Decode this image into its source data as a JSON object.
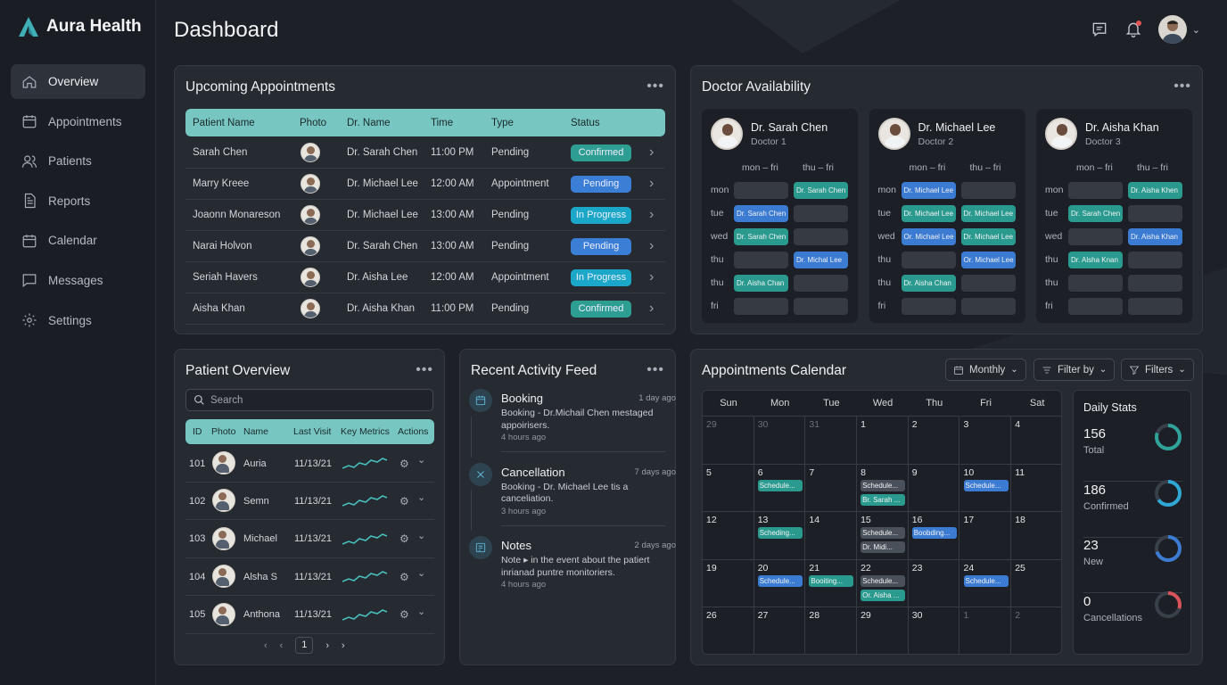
{
  "app": {
    "name": "Aura Health"
  },
  "page_title": "Dashboard",
  "sidebar": {
    "items": [
      {
        "label": "Overview",
        "icon": "home-icon",
        "active": true
      },
      {
        "label": "Appointments",
        "icon": "calendar-icon"
      },
      {
        "label": "Patients",
        "icon": "users-icon"
      },
      {
        "label": "Reports",
        "icon": "document-icon"
      },
      {
        "label": "Calendar",
        "icon": "calendar-icon"
      },
      {
        "label": "Messages",
        "icon": "message-icon"
      },
      {
        "label": "Settings",
        "icon": "gear-icon"
      }
    ]
  },
  "topbar": {
    "icons": [
      "message-icon",
      "bell-icon",
      "avatar",
      "chevron-down-icon"
    ]
  },
  "upcoming": {
    "title": "Upcoming Appointments",
    "headers": [
      "Patient Name",
      "Photo",
      "Dr. Name",
      "Time",
      "Type",
      "Status"
    ],
    "rows": [
      {
        "patient": "Sarah Chen",
        "doctor": "Dr. Sarah Chen",
        "time": "11:00 PM",
        "type": "Pending",
        "status": "Confirmed",
        "kind": "confirmed"
      },
      {
        "patient": "Marry Kreee",
        "doctor": "Dr. Michael Lee",
        "time": "12:00 AM",
        "type": "Appointment",
        "status": "Pending",
        "kind": "pending"
      },
      {
        "patient": "Joaonn Monareson",
        "doctor": "Dr. Michael Lee",
        "time": "13:00 AM",
        "type": "Pending",
        "status": "In Progress",
        "kind": "progress"
      },
      {
        "patient": "Narai Holvon",
        "doctor": "Dr. Sarah Chen",
        "time": "13:00 AM",
        "type": "Pending",
        "status": "Pending",
        "kind": "pending"
      },
      {
        "patient": "Seriah Havers",
        "doctor": "Dr. Aisha Lee",
        "time": "12:00 AM",
        "type": "Appointment",
        "status": "In Progress",
        "kind": "progress"
      },
      {
        "patient": "Aisha Khan",
        "doctor": "Dr. Aisha Khan",
        "time": "11:00 PM",
        "type": "Pending",
        "status": "Confirmed",
        "kind": "confirmed"
      }
    ]
  },
  "availability": {
    "title": "Doctor Availability",
    "col_headers": [
      "mon – fri",
      "thu – fri"
    ],
    "days": [
      "mon",
      "tue",
      "wed",
      "thu",
      "thu",
      "fri"
    ],
    "doctors": [
      {
        "name": "Dr. Sarah Chen",
        "role": "Doctor 1",
        "slots": [
          [
            "",
            "Dr. Sarah Chen"
          ],
          [
            "Dr. Sarah Chen",
            ""
          ],
          [
            "Dr. Sarah Chen",
            ""
          ],
          [
            "",
            "Dr. Michal Lee"
          ],
          [
            "Dr. Aisha Chan",
            ""
          ],
          [
            "",
            ""
          ]
        ],
        "colors": [
          [
            "",
            "teal"
          ],
          [
            "blue",
            ""
          ],
          [
            "teal",
            ""
          ],
          [
            "",
            "blue"
          ],
          [
            "teal",
            ""
          ],
          [
            "",
            ""
          ]
        ]
      },
      {
        "name": "Dr. Michael Lee",
        "role": "Doctor 2",
        "slots": [
          [
            "Dr. Michael Lee",
            ""
          ],
          [
            "Dr. Michael Lee",
            "Dr. Michael Lee"
          ],
          [
            "Or. Michael Lee",
            "Dr. Michael Lee"
          ],
          [
            "",
            "Or. Michael Lee"
          ],
          [
            "Dr. Aisha Chan",
            ""
          ],
          [
            "",
            ""
          ]
        ],
        "colors": [
          [
            "blue",
            ""
          ],
          [
            "teal",
            "teal"
          ],
          [
            "blue",
            "teal"
          ],
          [
            "",
            "blue"
          ],
          [
            "teal",
            ""
          ],
          [
            "",
            ""
          ]
        ]
      },
      {
        "name": "Dr. Aisha Khan",
        "role": "Doctor 3",
        "slots": [
          [
            "",
            "Dr. Aisha Khen"
          ],
          [
            "Dr. Sarah Chen",
            ""
          ],
          [
            "",
            "Dr. Aisha Khan"
          ],
          [
            "Dr. Alsha Knan",
            ""
          ],
          [
            "",
            ""
          ],
          [
            "",
            ""
          ]
        ],
        "colors": [
          [
            "",
            "teal"
          ],
          [
            "teal",
            ""
          ],
          [
            "",
            "blue"
          ],
          [
            "teal",
            ""
          ],
          [
            "",
            ""
          ],
          [
            "",
            ""
          ]
        ]
      }
    ]
  },
  "patients": {
    "title": "Patient Overview",
    "search_placeholder": "Search",
    "headers": [
      "ID",
      "Photo",
      "Name",
      "Last Visit",
      "Key Metrics",
      "Actions"
    ],
    "rows": [
      {
        "id": "101",
        "name": "Auria",
        "visit": "11/13/21"
      },
      {
        "id": "102",
        "name": "Semn",
        "visit": "11/13/21"
      },
      {
        "id": "103",
        "name": "Michael",
        "visit": "11/13/21"
      },
      {
        "id": "104",
        "name": "Alsha S",
        "visit": "11/13/21"
      },
      {
        "id": "105",
        "name": "Anthona",
        "visit": "11/13/21"
      }
    ],
    "page": "1"
  },
  "activity": {
    "title": "Recent Activity Feed",
    "items": [
      {
        "title": "Booking",
        "time": "1 day ago",
        "desc": "Booking - Dr.Michail Chen mestaged appoirisers.",
        "ago": "4 hours ago",
        "icon": "calendar-icon"
      },
      {
        "title": "Cancellation",
        "time": "7 days ago",
        "desc": "Booking - Dr. Michael Lee tis a canceliation.",
        "ago": "3 hours ago",
        "icon": "close-icon"
      },
      {
        "title": "Notes",
        "time": "2 days ago",
        "desc": "Note ▸ in the event about the patiert inrianad puntre monitoriers.",
        "ago": "4 hours ago",
        "icon": "note-icon"
      }
    ]
  },
  "calendar": {
    "title": "Appointments Calendar",
    "controls": [
      "Monthly",
      "Filter by",
      "Filters"
    ],
    "weekdays": [
      "Sun",
      "Mon",
      "Tue",
      "Wed",
      "Thu",
      "Fri",
      "Sat"
    ],
    "weeks": [
      [
        {
          "d": "29",
          "dim": true
        },
        {
          "d": "30",
          "dim": true
        },
        {
          "d": "31",
          "dim": true
        },
        {
          "d": "1"
        },
        {
          "d": "2"
        },
        {
          "d": "3"
        },
        {
          "d": "4"
        }
      ],
      [
        {
          "d": "5"
        },
        {
          "d": "6",
          "ev": [
            [
              "Schedule...",
              "teal"
            ]
          ]
        },
        {
          "d": "7"
        },
        {
          "d": "8",
          "ev": [
            [
              "Schedule...",
              "gray"
            ],
            [
              "Br. Sarah ...",
              "teal"
            ]
          ]
        },
        {
          "d": "9"
        },
        {
          "d": "10",
          "ev": [
            [
              "Schedule...",
              "blue"
            ]
          ]
        },
        {
          "d": "11"
        }
      ],
      [
        {
          "d": "12"
        },
        {
          "d": "13",
          "ev": [
            [
              "Scheding...",
              "teal"
            ]
          ]
        },
        {
          "d": "14"
        },
        {
          "d": "15",
          "ev": [
            [
              "Schedule...",
              "gray"
            ],
            [
              "Dr. Midi...",
              "gray"
            ]
          ]
        },
        {
          "d": "16",
          "ev": [
            [
              "Boobding...",
              "blue"
            ]
          ]
        },
        {
          "d": "17"
        },
        {
          "d": "18"
        }
      ],
      [
        {
          "d": "19"
        },
        {
          "d": "20",
          "ev": [
            [
              "Schedule...",
              "blue"
            ]
          ]
        },
        {
          "d": "21",
          "ev": [
            [
              "Booiting...",
              "teal"
            ]
          ]
        },
        {
          "d": "22",
          "ev": [
            [
              "Schedule...",
              "gray"
            ],
            [
              "Or. Aisha ...",
              "teal"
            ]
          ]
        },
        {
          "d": "23"
        },
        {
          "d": "24",
          "ev": [
            [
              "Schedule...",
              "blue"
            ]
          ]
        },
        {
          "d": "25"
        }
      ],
      [
        {
          "d": "26"
        },
        {
          "d": "27"
        },
        {
          "d": "28"
        },
        {
          "d": "29"
        },
        {
          "d": "30"
        },
        {
          "d": "1",
          "dim": true
        },
        {
          "d": "2",
          "dim": true
        }
      ]
    ]
  },
  "daily_stats": {
    "title": "Daily Stats",
    "items": [
      {
        "value": "156",
        "label": "Total",
        "fraction": 0.8,
        "color": "#2fa39a"
      },
      {
        "value": "186",
        "label": "Confirmed",
        "fraction": 0.65,
        "color": "#2fa8d6"
      },
      {
        "value": "23",
        "label": "New",
        "fraction": 0.7,
        "color": "#3b7bd2"
      },
      {
        "value": "0",
        "label": "Cancellations",
        "fraction": 0.3,
        "color": "#d9535a"
      }
    ]
  }
}
